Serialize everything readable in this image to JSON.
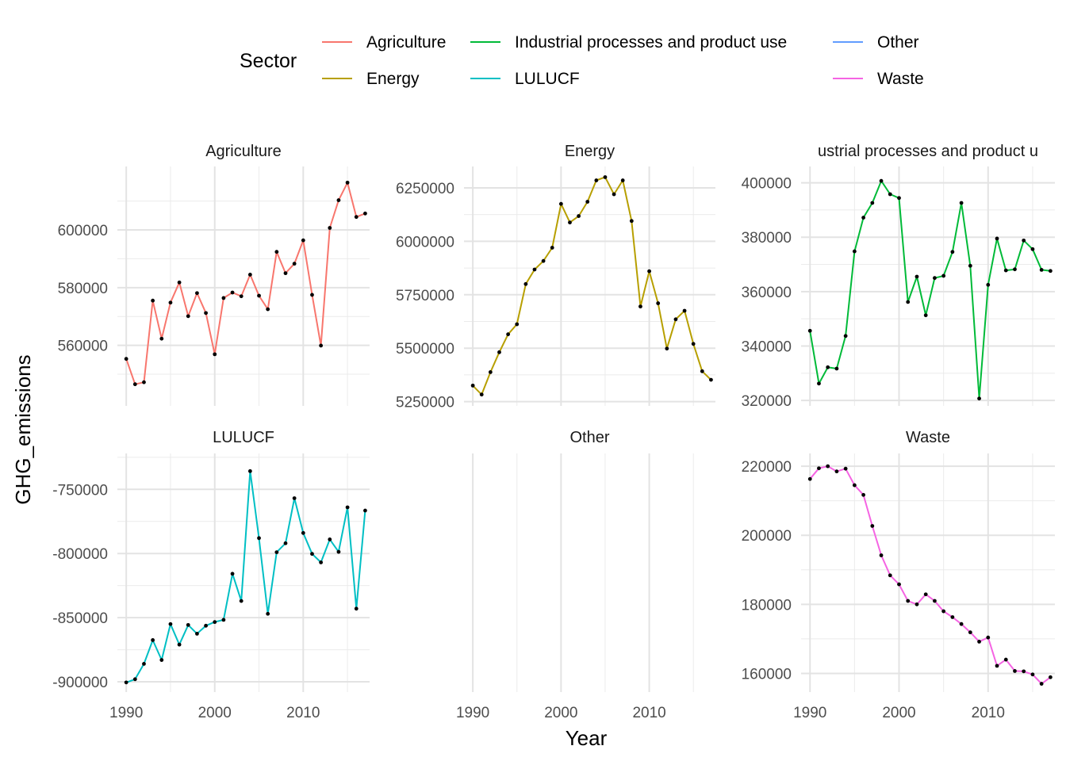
{
  "chart_data": {
    "type": "line",
    "xlabel": "Year",
    "ylabel": "GHG_emissions",
    "legend": {
      "title": "Sector",
      "position": "top",
      "entries": [
        {
          "name": "Agriculture",
          "color": "#F8766D"
        },
        {
          "name": "Energy",
          "color": "#B79F00"
        },
        {
          "name": "Industrial processes and product use",
          "color": "#00BA38"
        },
        {
          "name": "LULUCF",
          "color": "#00BFC4"
        },
        {
          "name": "Other",
          "color": "#619CFF"
        },
        {
          "name": "Waste",
          "color": "#F564E3"
        }
      ]
    },
    "grid": true,
    "point_color": "#000000",
    "x": [
      1990,
      1991,
      1992,
      1993,
      1994,
      1995,
      1996,
      1997,
      1998,
      1999,
      2000,
      2001,
      2002,
      2003,
      2004,
      2005,
      2006,
      2007,
      2008,
      2009,
      2010,
      2011,
      2012,
      2013,
      2014,
      2015,
      2016,
      2017
    ],
    "xticks": [
      1990,
      2000,
      2010
    ],
    "xlim": [
      1989,
      2017.5
    ],
    "panels": [
      {
        "title": "Agriculture",
        "title_display": "Agriculture",
        "color": "#F8766D",
        "ylim": [
          539000,
          622000
        ],
        "yticks": [
          560000,
          580000,
          600000
        ],
        "ytick_labels": [
          "560000",
          "580000",
          "600000"
        ],
        "values": [
          555300,
          546500,
          547200,
          575500,
          562300,
          574800,
          581800,
          570100,
          578100,
          571200,
          556900,
          576400,
          578300,
          577000,
          584500,
          577200,
          572500,
          592400,
          585000,
          588300,
          596400,
          577500,
          559900,
          600700,
          610300,
          616400,
          604500,
          605700
        ]
      },
      {
        "title": "Energy",
        "title_display": "Energy",
        "color": "#B79F00",
        "ylim": [
          5230000,
          6350000
        ],
        "yticks": [
          5250000,
          5500000,
          5750000,
          6000000,
          6250000
        ],
        "ytick_labels": [
          "5250000",
          "5500000",
          "5750000",
          "6000000",
          "6250000"
        ],
        "values": [
          5325000,
          5283000,
          5388000,
          5481000,
          5565000,
          5612000,
          5800000,
          5868000,
          5908000,
          5970000,
          6175000,
          6088000,
          6118000,
          6185000,
          6285000,
          6300000,
          6220000,
          6285000,
          6095000,
          5695000,
          5860000,
          5710000,
          5498000,
          5635000,
          5675000,
          5520000,
          5392000,
          5352000
        ]
      },
      {
        "title": "Industrial processes and product use",
        "title_display": "ustrial processes and product u",
        "color": "#00BA38",
        "ylim": [
          318000,
          406000
        ],
        "yticks": [
          320000,
          340000,
          360000,
          380000,
          400000
        ],
        "ytick_labels": [
          "320000",
          "340000",
          "360000",
          "380000",
          "400000"
        ],
        "values": [
          345600,
          326200,
          332200,
          331700,
          343700,
          374800,
          387200,
          392600,
          400700,
          395800,
          394400,
          356200,
          365500,
          351300,
          365000,
          365800,
          374600,
          392600,
          369500,
          320700,
          362500,
          379500,
          367800,
          368200,
          378800,
          375600,
          368000,
          367600
        ]
      },
      {
        "title": "LULUCF",
        "title_display": "LULUCF",
        "color": "#00BFC4",
        "ylim": [
          -908000,
          -722000
        ],
        "yticks": [
          -900000,
          -850000,
          -800000,
          -750000
        ],
        "ytick_labels": [
          "-900000",
          "-850000",
          "-800000",
          "-750000"
        ],
        "values": [
          -900500,
          -898000,
          -886000,
          -867500,
          -883000,
          -855000,
          -871000,
          -855700,
          -862500,
          -856300,
          -853400,
          -851700,
          -815800,
          -837000,
          -735800,
          -788000,
          -847000,
          -799000,
          -792000,
          -756900,
          -784000,
          -800300,
          -806900,
          -789000,
          -798700,
          -764000,
          -843000,
          -766500
        ]
      },
      {
        "title": "Other",
        "title_display": "Other",
        "color": "#619CFF",
        "ylim": [
          0,
          1
        ],
        "yticks": [],
        "ytick_labels": [],
        "values": []
      },
      {
        "title": "Waste",
        "title_display": "Waste",
        "color": "#F564E3",
        "ylim": [
          154600,
          223700
        ],
        "yticks": [
          160000,
          180000,
          200000,
          220000
        ],
        "ytick_labels": [
          "160000",
          "180000",
          "200000",
          "220000"
        ],
        "values": [
          216300,
          219400,
          220000,
          218500,
          219300,
          214500,
          211700,
          202700,
          194200,
          188400,
          185800,
          181000,
          180000,
          182900,
          181000,
          178000,
          176300,
          174300,
          171900,
          169200,
          170400,
          162200,
          164000,
          160700,
          160600,
          159700,
          157000,
          158900
        ]
      }
    ]
  }
}
